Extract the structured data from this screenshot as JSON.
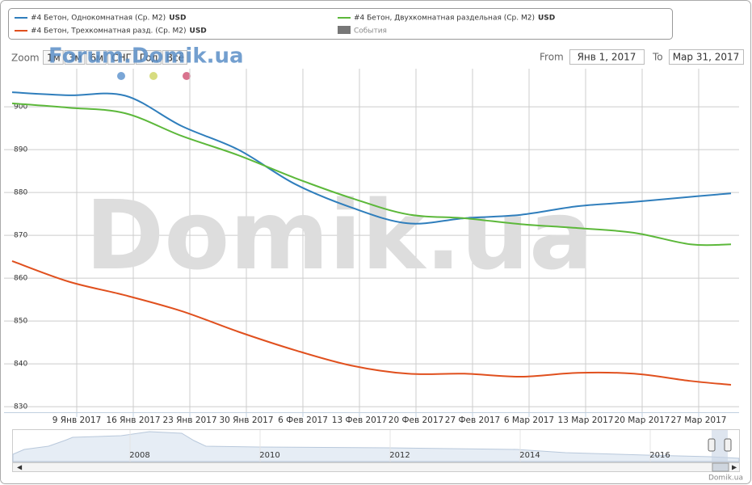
{
  "chart_data": {
    "type": "line",
    "zoom_label": "Zoom",
    "zoom_buttons": [
      "1м",
      "3м",
      "6м",
      "СНГ",
      "Год",
      "Всё"
    ],
    "from_label": "From",
    "from_value": "Янв 1, 2017",
    "to_label": "To",
    "to_value": "Мар 31, 2017",
    "watermark": "Domik.ua",
    "watermark_top": "Forum.Domik.ua",
    "credits": "Domik.ua",
    "events_label": "События",
    "x": [
      "2017-01-01",
      "2017-01-08",
      "2017-01-15",
      "2017-01-22",
      "2017-01-29",
      "2017-02-05",
      "2017-02-12",
      "2017-02-19",
      "2017-02-26",
      "2017-03-05",
      "2017-03-12",
      "2017-03-19",
      "2017-03-26",
      "2017-03-31"
    ],
    "series": [
      {
        "name": "#4 Бетон, Однокомнатная (Ср. М2)",
        "currency": "USD",
        "color": "#2f7ebc",
        "values": [
          903.4,
          902.7,
          902.6,
          895.5,
          890.0,
          882.0,
          876.5,
          872.8,
          874.0,
          874.8,
          876.8,
          877.8,
          879.0,
          879.8
        ]
      },
      {
        "name": "#4 Бетон, Двухкомнатная раздельная (Ср. М2)",
        "currency": "USD",
        "color": "#5cb83a",
        "values": [
          900.8,
          899.8,
          898.5,
          893.2,
          888.7,
          883.4,
          878.7,
          874.9,
          874.0,
          872.6,
          871.7,
          870.6,
          867.9,
          867.9
        ]
      },
      {
        "name": "#4 Бетон, Трехкомнатная разд. (Ср. М2)",
        "currency": "USD",
        "color": "#e0501e",
        "values": [
          864.0,
          859.2,
          856.0,
          852.3,
          847.5,
          843.2,
          839.6,
          837.7,
          837.7,
          837.0,
          837.9,
          837.7,
          836.0,
          835.1
        ]
      }
    ],
    "xlim": [
      "2017-01-01",
      "2017-04-01"
    ],
    "xticks": [
      {
        "value": "2017-01-09",
        "label": "9 Янв 2017"
      },
      {
        "value": "2017-01-16",
        "label": "16 Янв 2017"
      },
      {
        "value": "2017-01-23",
        "label": "23 Янв 2017"
      },
      {
        "value": "2017-01-30",
        "label": "30 Янв 2017"
      },
      {
        "value": "2017-02-06",
        "label": "6 Фев 2017"
      },
      {
        "value": "2017-02-13",
        "label": "13 Фев 2017"
      },
      {
        "value": "2017-02-20",
        "label": "20 Фев 2017"
      },
      {
        "value": "2017-02-27",
        "label": "27 Фев 2017"
      },
      {
        "value": "2017-03-06",
        "label": "6 Мар 2017"
      },
      {
        "value": "2017-03-13",
        "label": "13 Мар 2017"
      },
      {
        "value": "2017-03-20",
        "label": "20 Мар 2017"
      },
      {
        "value": "2017-03-27",
        "label": "27 Мар 2017"
      }
    ],
    "ylim": [
      828.7,
      908.9
    ],
    "yticks": [
      830,
      840,
      850,
      860,
      870,
      880,
      890,
      900
    ],
    "grid": true,
    "navigator_labels": [
      "2008",
      "2010",
      "2012",
      "2014",
      "2016"
    ]
  }
}
